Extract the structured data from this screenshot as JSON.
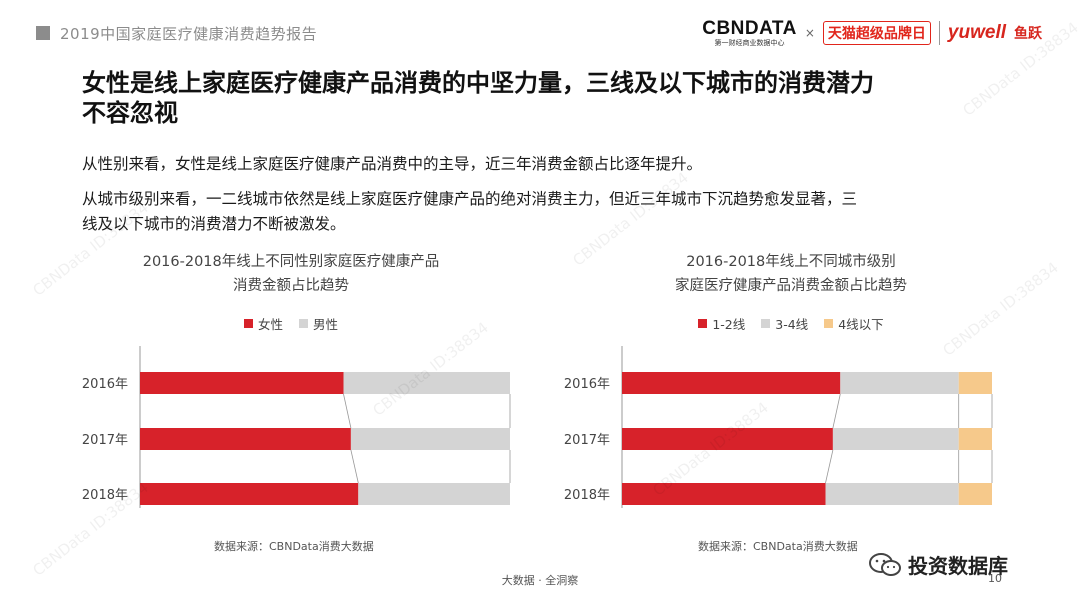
{
  "header": {
    "report_title": "2019中国家庭医疗健康消费趋势报告",
    "logo_cbn": "CBNDATA",
    "logo_cbn_sub": "第一财经商业数据中心",
    "logo_x": "×",
    "logo_tmall": "天猫超级品牌日",
    "logo_yuwell": "yuwell",
    "logo_yuwell_cn": "鱼跃"
  },
  "page": {
    "heading_line1": "女性是线上家庭医疗健康产品消费的中坚力量，三线及以下城市的消费潜力",
    "heading_line2": "不容忽视",
    "desc1": "从性别来看，女性是线上家庭医疗健康产品消费中的主导，近三年消费金额占比逐年提升。",
    "desc2_line1": "从城市级别来看，一二线城市依然是线上家庭医疗健康产品的绝对消费主力，但近三年城市下沉趋势愈发显著，三",
    "desc2_line2": "线及以下城市的消费潜力不断被激发。"
  },
  "chart_data": [
    {
      "type": "bar",
      "stacked": true,
      "orientation": "horizontal",
      "normalized": true,
      "title_line1": "2016-2018年线上不同性别家庭医疗健康产品",
      "title_line2": "消费金额占比趋势",
      "categories": [
        "2016年",
        "2017年",
        "2018年"
      ],
      "series": [
        {
          "name": "女性",
          "color": "#d7222a",
          "values": [
            0.55,
            0.57,
            0.59
          ]
        },
        {
          "name": "男性",
          "color": "#d4d4d4",
          "values": [
            0.45,
            0.43,
            0.41
          ]
        }
      ],
      "legend_position": "top",
      "source": "数据来源：CBNData消费大数据"
    },
    {
      "type": "bar",
      "stacked": true,
      "orientation": "horizontal",
      "normalized": true,
      "title_line1": "2016-2018年线上不同城市级别",
      "title_line2": "家庭医疗健康产品消费金额占比趋势",
      "categories": [
        "2016年",
        "2017年",
        "2018年"
      ],
      "series": [
        {
          "name": "1-2线",
          "color": "#d7222a",
          "values": [
            0.59,
            0.57,
            0.55
          ]
        },
        {
          "name": "3-4线",
          "color": "#d4d4d4",
          "values": [
            0.32,
            0.34,
            0.36
          ]
        },
        {
          "name": "4线以下",
          "color": "#f6c98b",
          "values": [
            0.09,
            0.09,
            0.09
          ]
        }
      ],
      "legend_position": "top",
      "source": "数据来源：CBNData消费大数据"
    }
  ],
  "footer": {
    "tagline": "大数据 · 全洞察",
    "page_number": "10",
    "wechat_label": "投资数据库"
  },
  "watermark_text": "CBNData ID:38834"
}
